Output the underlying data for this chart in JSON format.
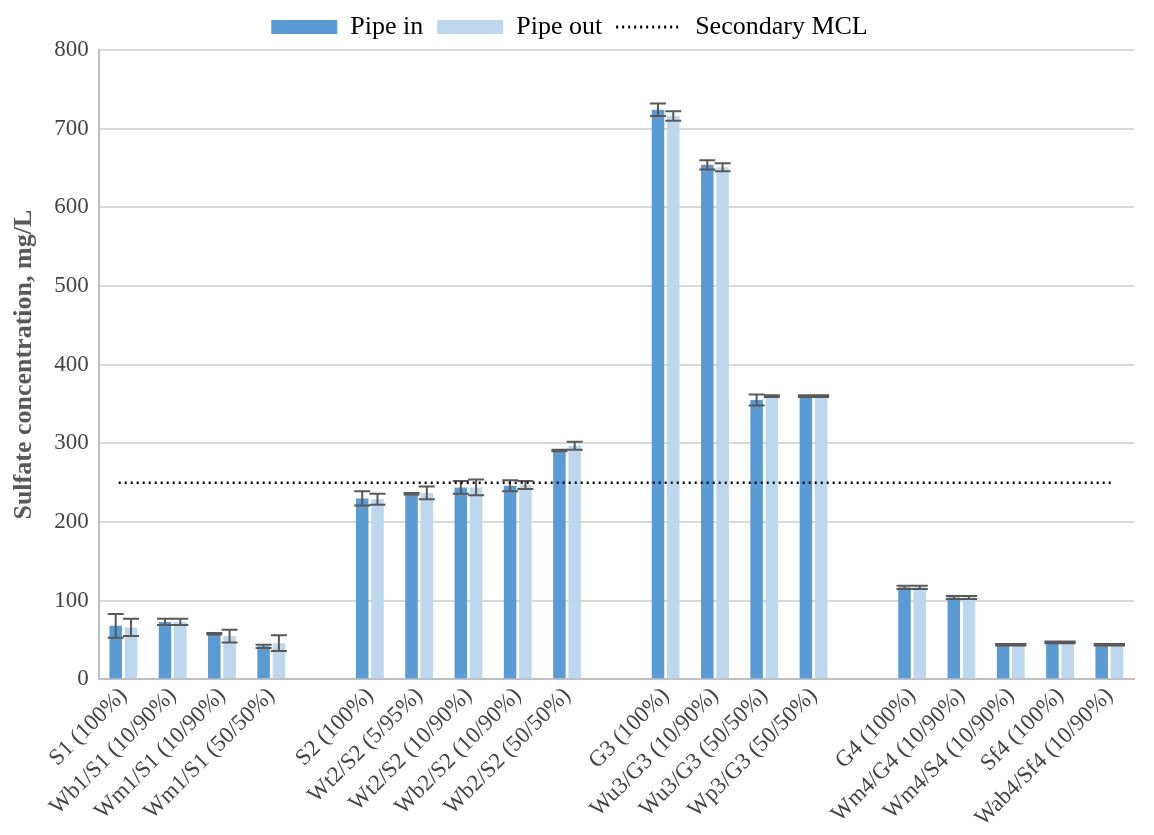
{
  "chart_data": {
    "type": "bar",
    "ylabel": "Sulfate concentration, mg/L",
    "categories": [
      "S1 (100%)",
      "Wb1/S1 (10/90%)",
      "Wm1/S1 (10/90%)",
      "Wm1/S1 (50/50%)",
      null,
      "S2 (100%)",
      "Wt2/S2 (5/95%)",
      "Wt2/S2 (10/90%)",
      "Wb2/S2 (10/90%)",
      "Wb2/S2 (50/50%)",
      null,
      "G3 (100%)",
      "Wu3/G3 (10/90%)",
      "Wu3/G3 (50/50%)",
      "Wp3/G3 (50/50%)",
      null,
      "G4 (100%)",
      "Wm4/G4 (10/90%)",
      "Wm4/S4 (10/90%)",
      "Sf4 (100%)",
      "Wab4/Sf4 (10/90%)"
    ],
    "series": [
      {
        "name": "Pipe in",
        "color": "#5b9bd5",
        "values": [
          68,
          73,
          58,
          42,
          null,
          230,
          236,
          244,
          246,
          291,
          null,
          724,
          654,
          355,
          360,
          null,
          117,
          104,
          44,
          47,
          44
        ],
        "errors": [
          15,
          4,
          1,
          2,
          null,
          9,
          1,
          8,
          7,
          1,
          null,
          8,
          6,
          7,
          1,
          null,
          2,
          2,
          1,
          1,
          1
        ]
      },
      {
        "name": "Pipe out",
        "color": "#bdd7ee",
        "values": [
          66,
          73,
          55,
          46,
          null,
          229,
          237,
          244,
          247,
          297,
          null,
          716,
          651,
          360,
          360,
          null,
          117,
          104,
          44,
          47,
          44
        ],
        "errors": [
          11,
          4,
          8,
          10,
          null,
          7,
          8,
          10,
          5,
          5,
          null,
          6,
          5,
          1,
          1,
          null,
          2,
          2,
          1,
          1,
          1
        ]
      }
    ],
    "ylim": [
      0,
      800
    ],
    "yticks": [
      0,
      100,
      200,
      300,
      400,
      500,
      600,
      700,
      800
    ],
    "ref_lines": [
      {
        "axis": "y",
        "value": 250,
        "label": "Secondary MCL",
        "color": "#000000",
        "line_style": "dotted"
      }
    ],
    "grid": "y",
    "legend": "top"
  }
}
